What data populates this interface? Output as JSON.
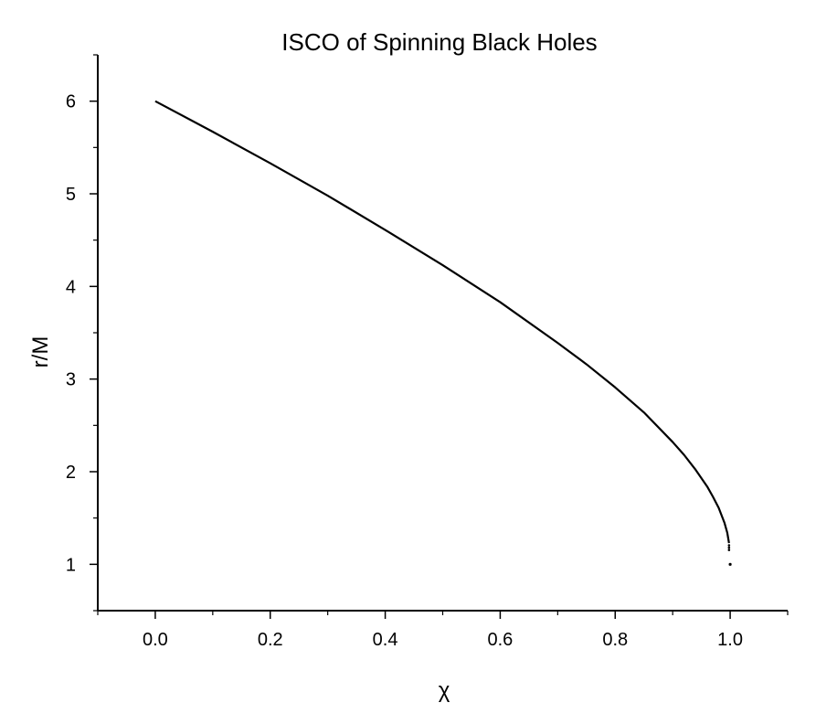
{
  "chart_data": {
    "type": "line",
    "title": "ISCO of Spinning Black Holes",
    "xlabel": "χ",
    "ylabel": "r/M",
    "xlim": [
      -0.1,
      1.1
    ],
    "ylim": [
      0.5,
      6.5
    ],
    "xticks": [
      "0.0",
      "0.2",
      "0.4",
      "0.6",
      "0.8",
      "1.0"
    ],
    "yticks": [
      "1",
      "2",
      "3",
      "4",
      "5",
      "6"
    ],
    "grid": false,
    "legend": "none",
    "series": [
      {
        "color": "#000000",
        "x": [
          0.0,
          0.1,
          0.2,
          0.3,
          0.4,
          0.5,
          0.6,
          0.7,
          0.75,
          0.8,
          0.85,
          0.9,
          0.92,
          0.94,
          0.96,
          0.97,
          0.98,
          0.99,
          0.995,
          0.998,
          1.0
        ],
        "y": [
          6.0,
          5.67,
          5.33,
          4.98,
          4.61,
          4.23,
          3.83,
          3.39,
          3.16,
          2.91,
          2.64,
          2.32,
          2.18,
          2.02,
          1.84,
          1.73,
          1.61,
          1.45,
          1.34,
          1.23,
          1.0
        ]
      }
    ]
  }
}
